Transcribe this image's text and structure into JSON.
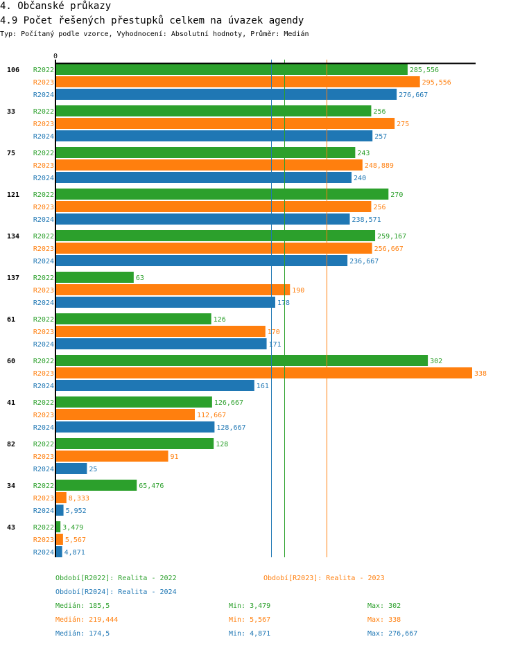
{
  "header": {
    "title": "4. Občanské průkazy",
    "subtitle": "4.9 Počet řešených přestupků celkem na úvazek agendy",
    "info": "Typ: Počítaný podle vzorce, Vyhodnocení: Absolutní hodnoty, Průměr: Medián"
  },
  "colors": {
    "R2022": "#2ca02c",
    "R2023": "#ff7f0e",
    "R2024": "#1f77b4",
    "axis": "#000000"
  },
  "chart_data": {
    "type": "bar",
    "orientation": "horizontal",
    "title": "4.9 Počet řešených přestupků celkem na úvazek agendy",
    "xlabel": "",
    "ylabel": "",
    "x_tick_labels": [
      "0"
    ],
    "xlim": [
      0,
      338
    ],
    "grid": false,
    "categories": [
      "106",
      "33",
      "75",
      "121",
      "134",
      "137",
      "61",
      "60",
      "41",
      "82",
      "34",
      "43"
    ],
    "series": [
      {
        "name": "R2022",
        "values": [
          285.556,
          256,
          243,
          270,
          259.167,
          63,
          126,
          302,
          126.667,
          128,
          65.476,
          3.479
        ],
        "labels": [
          "285,556",
          "256",
          "243",
          "270",
          "259,167",
          "63",
          "126",
          "302",
          "126,667",
          "128",
          "65,476",
          "3,479"
        ]
      },
      {
        "name": "R2023",
        "values": [
          295.556,
          275,
          248.889,
          256,
          256.667,
          190,
          170,
          338,
          112.667,
          91,
          8.333,
          5.567
        ],
        "labels": [
          "295,556",
          "275",
          "248,889",
          "256",
          "256,667",
          "190",
          "170",
          "338",
          "112,667",
          "91",
          "8,333",
          "5,567"
        ]
      },
      {
        "name": "R2024",
        "values": [
          276.667,
          257,
          240,
          238.571,
          236.667,
          178,
          171,
          161,
          128.667,
          25,
          5.952,
          4.871
        ],
        "labels": [
          "276,667",
          "257",
          "240",
          "238,571",
          "236,667",
          "178",
          "171",
          "161",
          "128,667",
          "25",
          "5,952",
          "4,871"
        ]
      }
    ],
    "reference_lines": [
      {
        "series": "R2024",
        "type": "median",
        "value": 174.5
      },
      {
        "series": "R2022",
        "type": "median",
        "value": 185.5
      },
      {
        "series": "R2023",
        "type": "median",
        "value": 219.444
      }
    ]
  },
  "legend": {
    "periods": [
      {
        "series": "R2022",
        "label": "Období[R2022]: Realita - 2022"
      },
      {
        "series": "R2023",
        "label": "Období[R2023]: Realita - 2023"
      },
      {
        "series": "R2024",
        "label": "Období[R2024]: Realita - 2024"
      }
    ],
    "stats": [
      {
        "series": "R2022",
        "median": "Medián: 185,5",
        "min": "Min: 3,479",
        "max": "Max: 302"
      },
      {
        "series": "R2023",
        "median": "Medián: 219,444",
        "min": "Min: 5,567",
        "max": "Max: 338"
      },
      {
        "series": "R2024",
        "median": "Medián: 174,5",
        "min": "Min: 4,871",
        "max": "Max: 276,667"
      }
    ]
  }
}
